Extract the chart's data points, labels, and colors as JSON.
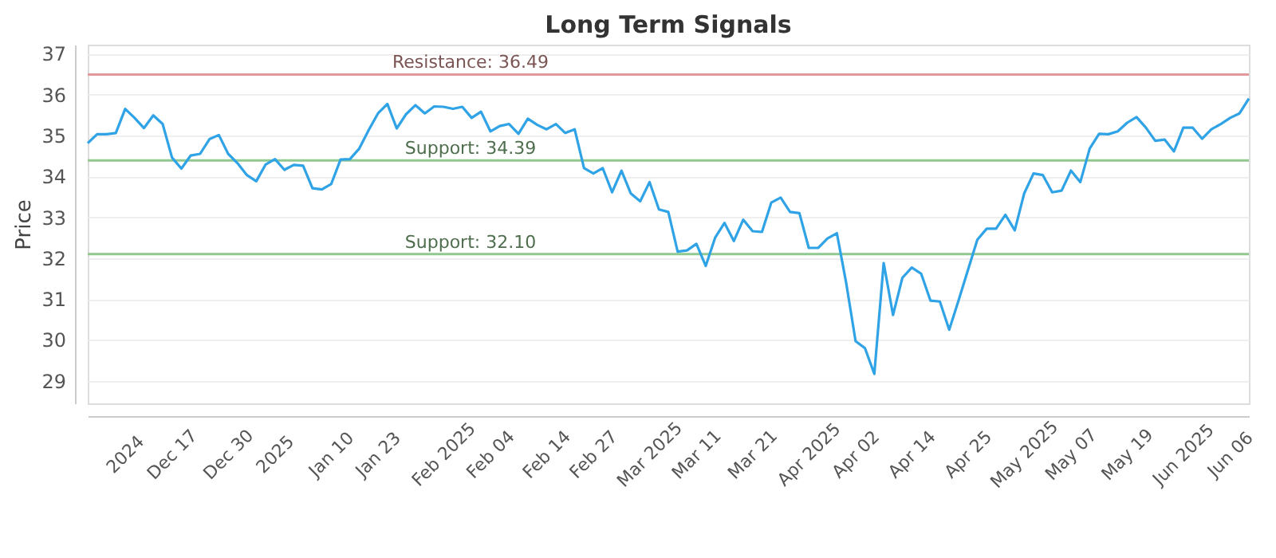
{
  "chart_data": {
    "type": "line",
    "title": "Long Term Signals",
    "ylabel": "Price",
    "categories": [
      null,
      null,
      null,
      null,
      "2024",
      null,
      null,
      null,
      null,
      "Dec 17",
      null,
      null,
      null,
      null,
      null,
      "Dec 30",
      null,
      null,
      null,
      null,
      "2025",
      null,
      null,
      null,
      null,
      null,
      "Jan 10",
      null,
      null,
      null,
      null,
      "Jan 23",
      null,
      null,
      null,
      null,
      null,
      null,
      "Feb 2025",
      null,
      null,
      null,
      null,
      "Feb 04",
      null,
      null,
      null,
      null,
      null,
      "Feb 14",
      null,
      null,
      null,
      null,
      "Feb 27",
      null,
      null,
      null,
      null,
      null,
      "Mar 2025",
      null,
      null,
      null,
      null,
      "Mar 11",
      null,
      null,
      null,
      null,
      null,
      "Mar 21",
      null,
      null,
      null,
      null,
      null,
      "Apr 2025",
      null,
      null,
      null,
      null,
      "Apr 02",
      null,
      null,
      null,
      null,
      null,
      "Apr 14",
      null,
      null,
      null,
      null,
      null,
      "Apr 25",
      null,
      null,
      null,
      null,
      null,
      "May 2025",
      null,
      null,
      null,
      null,
      "May 07",
      null,
      null,
      null,
      null,
      null,
      "May 19",
      null,
      null,
      null,
      null,
      null,
      "Jun 2025",
      null,
      null,
      null,
      null,
      "Jun 06",
      null,
      null
    ],
    "series": [
      {
        "color": "#2fa3e6",
        "values": [
          34.81,
          35.03,
          35.03,
          35.06,
          35.65,
          35.43,
          35.18,
          35.49,
          35.28,
          34.46,
          34.19,
          34.51,
          34.55,
          34.91,
          35.01,
          34.55,
          34.32,
          34.03,
          33.88,
          34.29,
          34.42,
          34.16,
          34.28,
          34.26,
          33.71,
          33.68,
          33.81,
          34.41,
          34.42,
          34.68,
          35.13,
          35.54,
          35.77,
          35.17,
          35.52,
          35.74,
          35.54,
          35.71,
          35.7,
          35.65,
          35.7,
          35.43,
          35.58,
          35.1,
          35.23,
          35.28,
          35.04,
          35.41,
          35.26,
          35.15,
          35.28,
          35.06,
          35.15,
          34.2,
          34.07,
          34.2,
          33.61,
          34.14,
          33.58,
          33.39,
          33.86,
          33.19,
          33.13,
          32.16,
          32.19,
          32.35,
          31.81,
          32.5,
          32.86,
          32.42,
          32.94,
          32.66,
          32.64,
          33.36,
          33.48,
          33.13,
          33.1,
          32.25,
          32.25,
          32.48,
          32.61,
          31.39,
          29.97,
          29.8,
          29.17,
          31.88,
          30.61,
          31.52,
          31.77,
          31.62,
          30.96,
          30.94,
          30.25,
          30.97,
          31.71,
          32.45,
          32.72,
          32.72,
          33.06,
          32.68,
          33.58,
          34.07,
          34.03,
          33.61,
          33.65,
          34.14,
          33.86,
          34.68,
          35.04,
          35.03,
          35.1,
          35.31,
          35.45,
          35.19,
          34.87,
          34.9,
          34.61,
          35.19,
          35.19,
          34.92,
          35.15,
          35.28,
          35.43,
          35.54,
          35.9
        ]
      }
    ],
    "ylim": [
      28.45,
      37.22
    ],
    "yticks": [
      29,
      30,
      31,
      32,
      33,
      34,
      35,
      36,
      37
    ],
    "grid": "y",
    "marker": "none",
    "line_style": "solid",
    "ref_lines": [
      {
        "axis": "y",
        "value": 36.49,
        "label": "Resistance: 36.49",
        "color": "#e09a9a"
      },
      {
        "axis": "y",
        "value": 34.39,
        "label": "Support: 34.39",
        "color": "#8fc98f"
      },
      {
        "axis": "y",
        "value": 32.1,
        "label": "Support: 32.10",
        "color": "#8fc98f"
      }
    ]
  }
}
